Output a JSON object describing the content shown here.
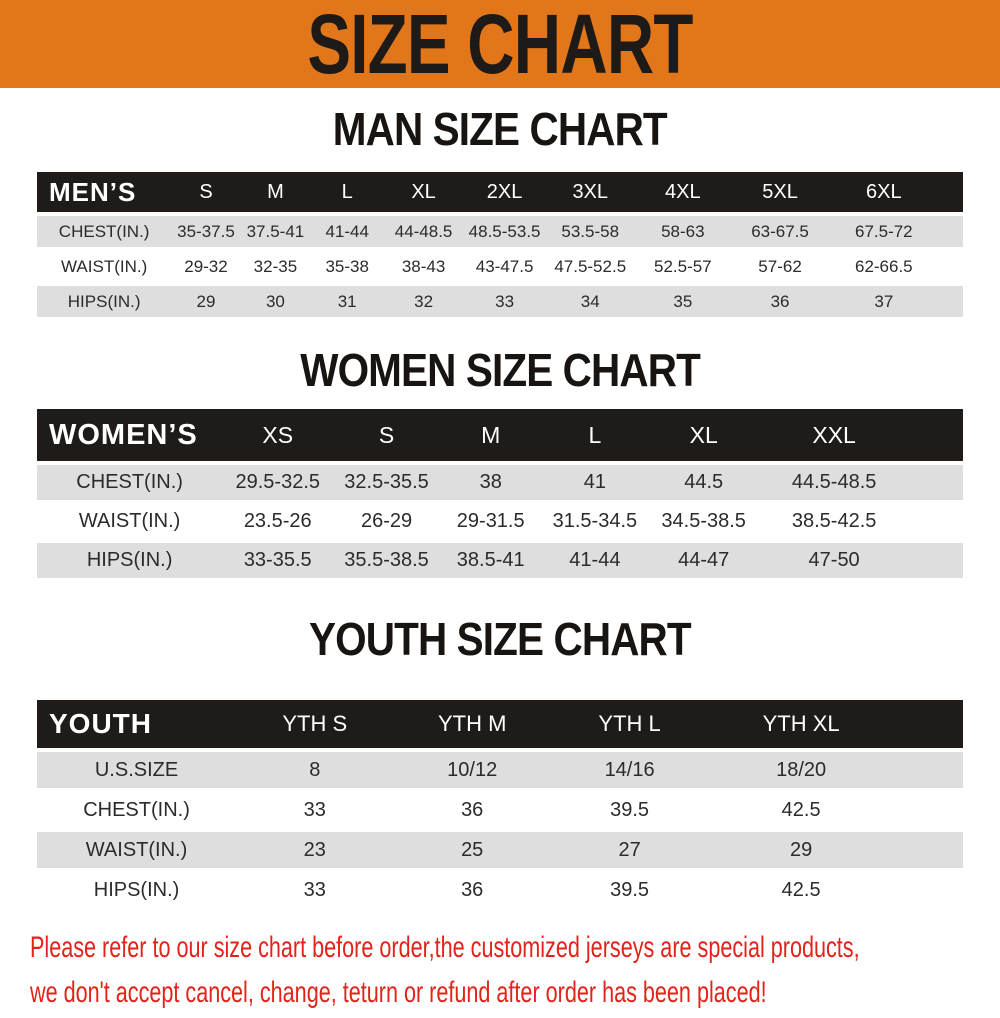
{
  "banner": {
    "title": "SIZE CHART"
  },
  "sections": [
    {
      "heading": "MAN SIZE CHART",
      "table": {
        "corner_label": "MEN’S",
        "columns": [
          "S",
          "M",
          "L",
          "XL",
          "2XL",
          "3XL",
          "4XL",
          "5XL",
          "6XL"
        ],
        "rows": [
          {
            "label": "CHEST(IN.)",
            "values": [
              "35-37.5",
              "37.5-41",
              "41-44",
              "44-48.5",
              "48.5-53.5",
              "53.5-58",
              "58-63",
              "63-67.5",
              "67.5-72"
            ]
          },
          {
            "label": "WAIST(IN.)",
            "values": [
              "29-32",
              "32-35",
              "35-38",
              "38-43",
              "43-47.5",
              "47.5-52.5",
              "52.5-57",
              "57-62",
              "62-66.5"
            ]
          },
          {
            "label": "HIPS(IN.)",
            "values": [
              "29",
              "30",
              "31",
              "32",
              "33",
              "34",
              "35",
              "36",
              "37"
            ]
          }
        ]
      }
    },
    {
      "heading": "WOMEN SIZE CHART",
      "table": {
        "corner_label": "WOMEN’S",
        "columns": [
          "XS",
          "S",
          "M",
          "L",
          "XL",
          "XXL"
        ],
        "rows": [
          {
            "label": "CHEST(IN.)",
            "values": [
              "29.5-32.5",
              "32.5-35.5",
              "38",
              "41",
              "44.5",
              "44.5-48.5"
            ]
          },
          {
            "label": "WAIST(IN.)",
            "values": [
              "23.5-26",
              "26-29",
              "29-31.5",
              "31.5-34.5",
              "34.5-38.5",
              "38.5-42.5"
            ]
          },
          {
            "label": "HIPS(IN.)",
            "values": [
              "33-35.5",
              "35.5-38.5",
              "38.5-41",
              "41-44",
              "44-47",
              "47-50"
            ]
          }
        ]
      }
    },
    {
      "heading": "YOUTH SIZE CHART",
      "table": {
        "corner_label": "YOUTH",
        "columns": [
          "YTH S",
          "YTH M",
          "YTH L",
          "YTH XL"
        ],
        "rows": [
          {
            "label": "U.S.SIZE",
            "values": [
              "8",
              "10/12",
              "14/16",
              "18/20"
            ]
          },
          {
            "label": "CHEST(IN.)",
            "values": [
              "33",
              "36",
              "39.5",
              "42.5"
            ]
          },
          {
            "label": "WAIST(IN.)",
            "values": [
              "23",
              "25",
              "27",
              "29"
            ]
          },
          {
            "label": "HIPS(IN.)",
            "values": [
              "33",
              "36",
              "39.5",
              "42.5"
            ]
          }
        ]
      }
    }
  ],
  "footer": {
    "line1": "Please refer to our size chart before order,the customized jerseys are special products,",
    "line2": "we don't accept cancel, change, teturn or refund after order has been placed!"
  },
  "colors": {
    "banner_orange": "#E2761A",
    "header_black": "#1F1B18",
    "row_gray": "#DEDEDE",
    "notice_red": "#E3231A"
  }
}
